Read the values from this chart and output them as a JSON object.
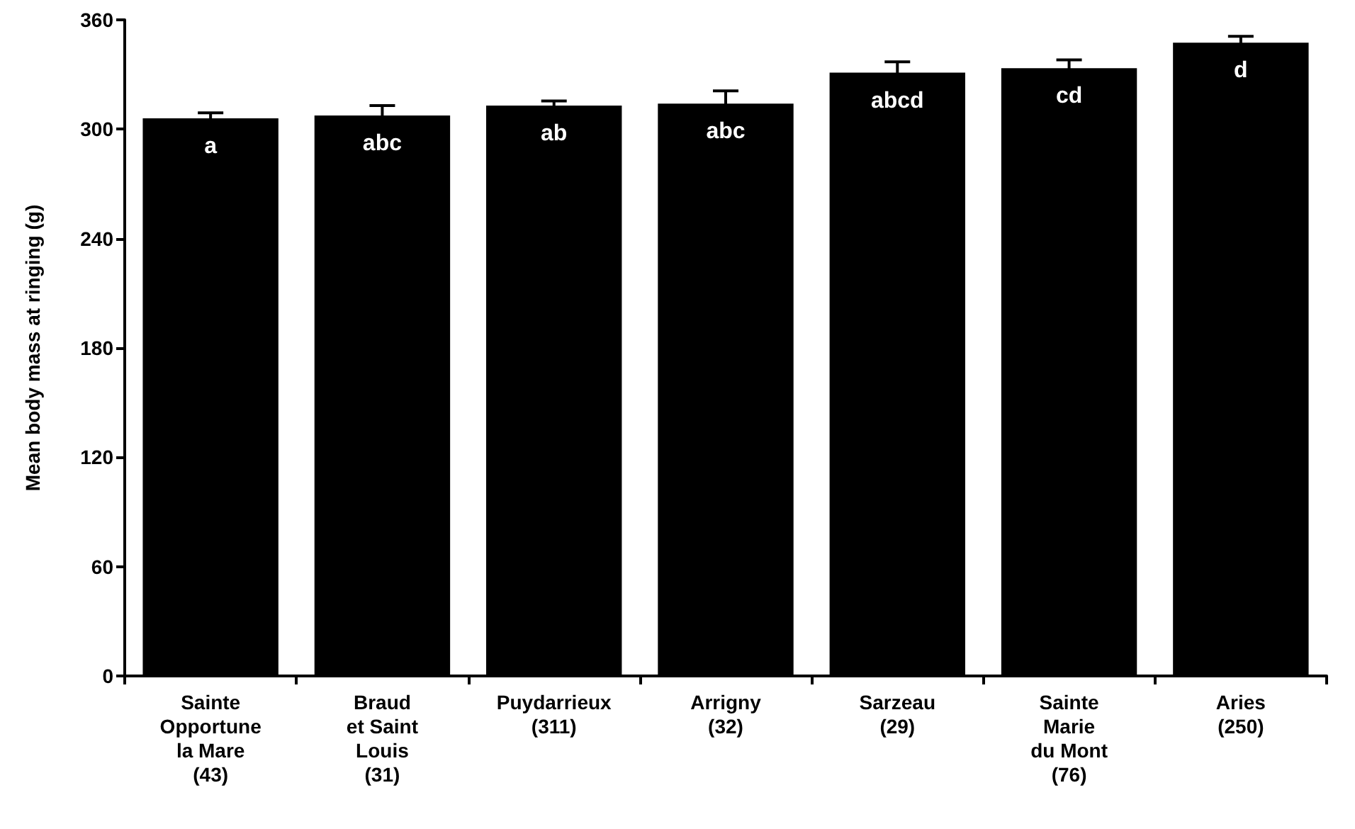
{
  "chart_data": {
    "type": "bar",
    "ylabel": "Mean body mass at ringing (g)",
    "categories": [
      "Sainte\nOpportune\nla Mare\n(43)",
      "Braud\net Saint\nLouis\n(31)",
      "Puydarrieux\n(311)",
      "Arrigny\n(32)",
      "Sarzeau\n(29)",
      "Sainte\nMarie\ndu Mont\n(76)",
      "Aries\n(250)"
    ],
    "values": [
      306,
      307.5,
      313,
      314,
      331,
      333.5,
      347.5
    ],
    "errors": [
      3,
      5.5,
      2.5,
      7,
      6,
      4.5,
      3.5
    ],
    "color": "#000000",
    "ylim": [
      0,
      360
    ],
    "yticks": [
      0,
      60,
      120,
      180,
      240,
      300,
      360
    ],
    "grid": false,
    "value_labels": [
      "a",
      "abc",
      "ab",
      "abc",
      "abcd",
      "cd",
      "d"
    ]
  }
}
